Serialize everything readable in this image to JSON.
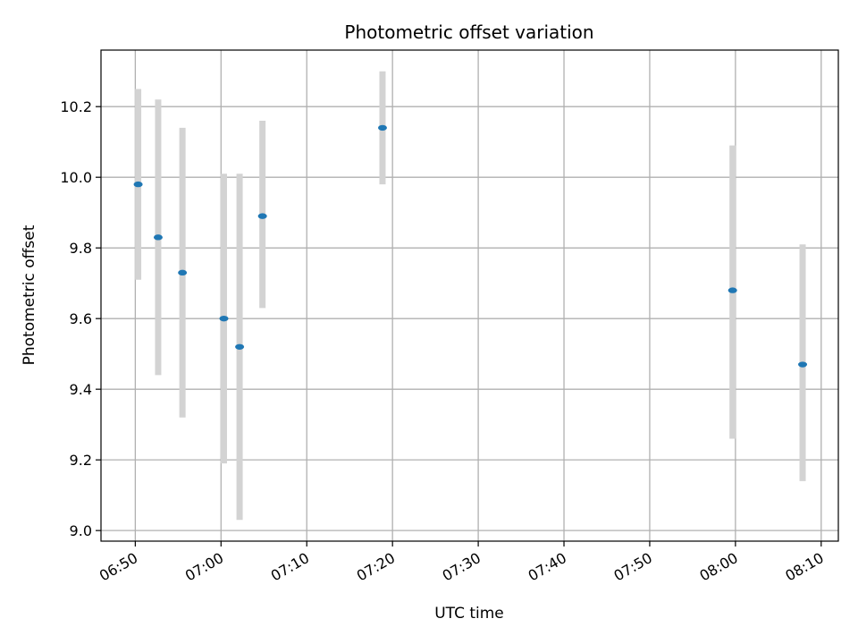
{
  "chart_data": {
    "type": "scatter",
    "title": "Photometric offset variation",
    "xlabel": "UTC time",
    "ylabel": "Photometric offset",
    "xlim": [
      "06:46",
      "08:12"
    ],
    "ylim": [
      8.97,
      10.36
    ],
    "x_ticks": [
      "06:50",
      "07:00",
      "07:10",
      "07:20",
      "07:30",
      "07:40",
      "07:50",
      "08:00",
      "08:10"
    ],
    "y_ticks": [
      "9.0",
      "9.2",
      "9.4",
      "9.6",
      "9.8",
      "10.0",
      "10.2"
    ],
    "grid": true,
    "colors": {
      "marker": "#1f77b4",
      "errorbar": "#d3d3d3",
      "grid": "#b0b0b0"
    },
    "points": [
      {
        "x": "06:50:20",
        "y": 9.98,
        "ylow": 9.71,
        "yhigh": 10.25
      },
      {
        "x": "06:52:40",
        "y": 9.83,
        "ylow": 9.44,
        "yhigh": 10.22
      },
      {
        "x": "06:55:30",
        "y": 9.73,
        "ylow": 9.32,
        "yhigh": 10.14
      },
      {
        "x": "07:00:20",
        "y": 9.6,
        "ylow": 9.19,
        "yhigh": 10.01
      },
      {
        "x": "07:02:10",
        "y": 9.52,
        "ylow": 9.03,
        "yhigh": 10.01
      },
      {
        "x": "07:04:50",
        "y": 9.89,
        "ylow": 9.63,
        "yhigh": 10.16
      },
      {
        "x": "07:18:50",
        "y": 10.14,
        "ylow": 9.98,
        "yhigh": 10.3
      },
      {
        "x": "07:59:40",
        "y": 9.68,
        "ylow": 9.26,
        "yhigh": 10.09
      },
      {
        "x": "08:07:50",
        "y": 9.47,
        "ylow": 9.14,
        "yhigh": 9.81
      }
    ]
  }
}
